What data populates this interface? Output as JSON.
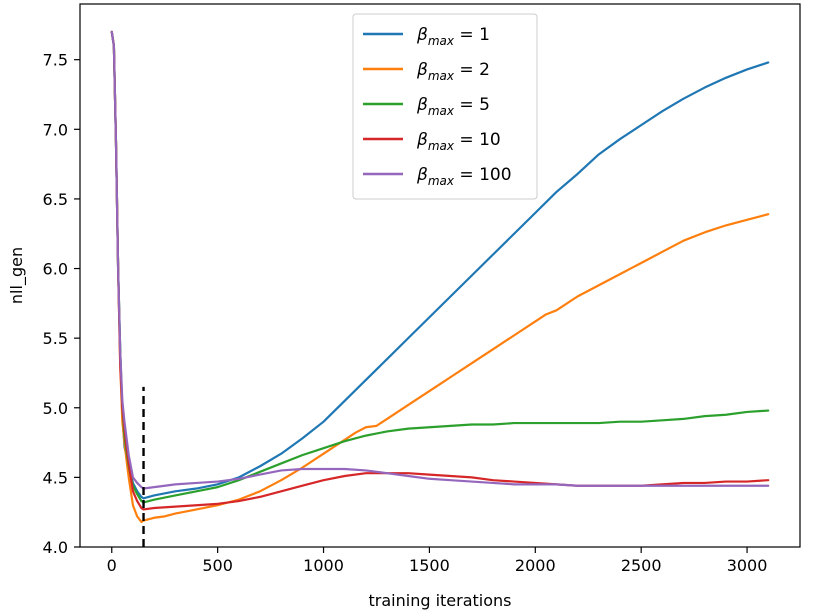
{
  "chart_data": {
    "type": "line",
    "title": "",
    "xlabel": "training iterations",
    "ylabel": "nll_gen",
    "xlim": [
      -150,
      3250
    ],
    "ylim": [
      4.0,
      7.9
    ],
    "xticks": [
      0,
      500,
      1000,
      1500,
      2000,
      2500,
      3000
    ],
    "yticks": [
      4.0,
      4.5,
      5.0,
      5.5,
      6.0,
      6.5,
      7.0,
      7.5
    ],
    "xtick_labels": [
      "0",
      "500",
      "1000",
      "1500",
      "2000",
      "2500",
      "3000"
    ],
    "ytick_labels": [
      "4.0",
      "4.5",
      "5.0",
      "5.5",
      "6.0",
      "6.5",
      "7.0",
      "7.5"
    ],
    "grid": false,
    "legend_position": "upper-center",
    "vline": {
      "x": 150,
      "ymin": 4.0,
      "ymax": 5.15,
      "style": "dashed",
      "color": "#000000"
    },
    "series": [
      {
        "name": "β_max = 1",
        "legend_symbol": "β",
        "legend_sub": "max",
        "legend_value": " = 1",
        "color": "#1f77b4",
        "x": [
          0,
          10,
          20,
          30,
          40,
          50,
          60,
          70,
          80,
          90,
          100,
          120,
          140,
          150,
          200,
          300,
          400,
          500,
          600,
          700,
          800,
          900,
          1000,
          1100,
          1200,
          1300,
          1400,
          1500,
          1600,
          1700,
          1800,
          1900,
          2000,
          2100,
          2200,
          2300,
          2400,
          2500,
          2600,
          2700,
          2800,
          2900,
          3000,
          3100
        ],
        "y": [
          7.7,
          7.6,
          6.9,
          6.0,
          5.4,
          4.95,
          4.72,
          4.65,
          4.58,
          4.52,
          4.46,
          4.4,
          4.36,
          4.35,
          4.37,
          4.4,
          4.42,
          4.45,
          4.5,
          4.58,
          4.67,
          4.78,
          4.9,
          5.05,
          5.2,
          5.35,
          5.5,
          5.65,
          5.8,
          5.95,
          6.1,
          6.25,
          6.4,
          6.55,
          6.68,
          6.82,
          6.93,
          7.03,
          7.13,
          7.22,
          7.3,
          7.37,
          7.43,
          7.48
        ]
      },
      {
        "name": "β_max = 2",
        "legend_symbol": "β",
        "legend_sub": "max",
        "legend_value": " = 2",
        "color": "#ff7f0e",
        "x": [
          0,
          10,
          20,
          30,
          40,
          50,
          60,
          70,
          80,
          90,
          100,
          120,
          140,
          150,
          200,
          250,
          300,
          400,
          500,
          600,
          700,
          800,
          900,
          1000,
          1100,
          1150,
          1200,
          1250,
          1300,
          1400,
          1500,
          1600,
          1700,
          1800,
          1900,
          2000,
          2050,
          2100,
          2200,
          2300,
          2400,
          2500,
          2600,
          2700,
          2800,
          2900,
          3000,
          3100
        ],
        "y": [
          7.7,
          7.6,
          6.9,
          6.0,
          5.3,
          4.9,
          4.75,
          4.62,
          4.5,
          4.4,
          4.3,
          4.22,
          4.18,
          4.19,
          4.21,
          4.22,
          4.24,
          4.27,
          4.3,
          4.34,
          4.4,
          4.48,
          4.57,
          4.67,
          4.77,
          4.82,
          4.86,
          4.87,
          4.92,
          5.02,
          5.12,
          5.22,
          5.32,
          5.42,
          5.52,
          5.62,
          5.67,
          5.7,
          5.8,
          5.88,
          5.96,
          6.04,
          6.12,
          6.2,
          6.26,
          6.31,
          6.35,
          6.39
        ]
      },
      {
        "name": "β_max = 5",
        "legend_symbol": "β",
        "legend_sub": "max",
        "legend_value": " = 5",
        "color": "#2ca02c",
        "x": [
          0,
          10,
          20,
          30,
          40,
          50,
          60,
          70,
          80,
          90,
          100,
          120,
          140,
          150,
          200,
          300,
          400,
          500,
          600,
          700,
          800,
          900,
          1000,
          1100,
          1200,
          1300,
          1400,
          1500,
          1600,
          1700,
          1800,
          1900,
          2000,
          2100,
          2200,
          2300,
          2400,
          2500,
          2600,
          2700,
          2800,
          2900,
          3000,
          3100
        ],
        "y": [
          7.7,
          7.6,
          6.9,
          6.0,
          5.4,
          5.0,
          4.8,
          4.68,
          4.58,
          4.5,
          4.44,
          4.38,
          4.33,
          4.32,
          4.34,
          4.37,
          4.4,
          4.43,
          4.48,
          4.54,
          4.6,
          4.66,
          4.71,
          4.76,
          4.8,
          4.83,
          4.85,
          4.86,
          4.87,
          4.88,
          4.88,
          4.89,
          4.89,
          4.89,
          4.89,
          4.89,
          4.9,
          4.9,
          4.91,
          4.92,
          4.94,
          4.95,
          4.97,
          4.98
        ]
      },
      {
        "name": "β_max = 10",
        "legend_symbol": "β",
        "legend_sub": "max",
        "legend_value": " = 10",
        "color": "#d62728",
        "x": [
          0,
          10,
          20,
          30,
          40,
          50,
          60,
          70,
          80,
          90,
          100,
          120,
          140,
          150,
          200,
          300,
          400,
          500,
          600,
          700,
          800,
          900,
          1000,
          1100,
          1200,
          1300,
          1400,
          1500,
          1600,
          1700,
          1800,
          1900,
          2000,
          2100,
          2200,
          2300,
          2400,
          2500,
          2600,
          2700,
          2800,
          2900,
          3000,
          3100
        ],
        "y": [
          7.7,
          7.6,
          6.9,
          6.0,
          5.3,
          5.0,
          4.85,
          4.72,
          4.6,
          4.5,
          4.4,
          4.33,
          4.28,
          4.27,
          4.28,
          4.29,
          4.3,
          4.31,
          4.33,
          4.36,
          4.4,
          4.44,
          4.48,
          4.51,
          4.53,
          4.53,
          4.53,
          4.52,
          4.51,
          4.5,
          4.48,
          4.47,
          4.46,
          4.45,
          4.44,
          4.44,
          4.44,
          4.44,
          4.45,
          4.46,
          4.46,
          4.47,
          4.47,
          4.48
        ]
      },
      {
        "name": "β_max = 100",
        "legend_symbol": "β",
        "legend_sub": "max",
        "legend_value": " = 100",
        "color": "#9467bd",
        "x": [
          0,
          10,
          20,
          30,
          40,
          50,
          60,
          70,
          80,
          90,
          100,
          120,
          140,
          150,
          200,
          300,
          400,
          500,
          600,
          700,
          800,
          900,
          1000,
          1100,
          1200,
          1300,
          1400,
          1500,
          1600,
          1700,
          1800,
          1900,
          2000,
          2100,
          2200,
          2300,
          2400,
          2500,
          2600,
          2700,
          2800,
          2900,
          3000,
          3100
        ],
        "y": [
          7.7,
          7.6,
          6.9,
          6.0,
          5.4,
          5.05,
          4.9,
          4.78,
          4.66,
          4.58,
          4.5,
          4.46,
          4.43,
          4.42,
          4.43,
          4.45,
          4.46,
          4.47,
          4.49,
          4.52,
          4.55,
          4.56,
          4.56,
          4.56,
          4.55,
          4.53,
          4.51,
          4.49,
          4.48,
          4.47,
          4.46,
          4.45,
          4.45,
          4.45,
          4.44,
          4.44,
          4.44,
          4.44,
          4.44,
          4.44,
          4.44,
          4.44,
          4.44,
          4.44
        ]
      }
    ]
  }
}
